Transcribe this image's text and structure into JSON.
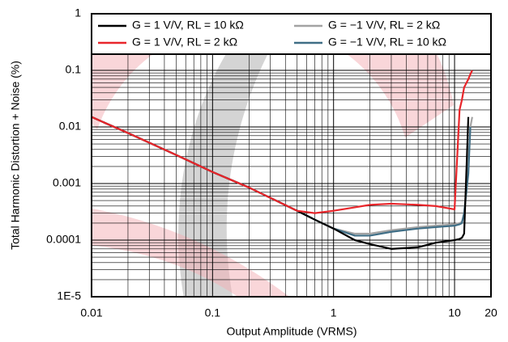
{
  "chart_data": {
    "type": "line",
    "x_label": "Output Amplitude (VRMS)",
    "y_label": "Total Harmonic Distortion  + Noise (%)",
    "x": [
      0.01,
      0.02,
      0.05,
      0.1,
      0.2,
      0.5,
      0.7,
      1,
      1.5,
      2,
      3,
      5,
      7,
      10,
      11,
      11.5,
      12,
      13,
      13.5,
      14
    ],
    "series": [
      {
        "name": "G = −1 V/V, RL = 2 kΩ",
        "color": "#a3a3a3",
        "values": [
          0.015,
          0.0078,
          0.0032,
          0.0016,
          0.00085,
          0.00033,
          0.00023,
          0.00016,
          0.00013,
          0.00013,
          0.00015,
          0.00017,
          0.00018,
          0.00019,
          0.0002,
          0.00021,
          0.0003,
          0.002,
          0.01,
          0.015
        ]
      },
      {
        "name": "G = −1 V/V, RL = 10 kΩ",
        "color": "#3f6e86",
        "values": [
          0.015,
          0.0078,
          0.0032,
          0.0016,
          0.00085,
          0.00033,
          0.00023,
          0.00016,
          0.00012,
          0.00012,
          0.00014,
          0.00016,
          0.00017,
          0.00018,
          0.00019,
          0.0002,
          0.0003,
          0.0015,
          0.01,
          null
        ]
      },
      {
        "name": "G = 1 V/V, RL = 10 kΩ",
        "color": "#000000",
        "values": [
          0.015,
          0.0078,
          0.0032,
          0.0016,
          0.00085,
          0.00033,
          0.00023,
          0.00016,
          0.0001,
          8.5e-05,
          7e-05,
          7.5e-05,
          9e-05,
          0.0001,
          0.000105,
          0.00011,
          0.00013,
          0.015,
          null,
          null
        ]
      },
      {
        "name": "G = 1 V/V, RL = 2 kΩ",
        "color": "#e8262b",
        "values": [
          0.015,
          0.0078,
          0.0032,
          0.0016,
          0.00085,
          0.00033,
          0.0003,
          0.00033,
          0.00038,
          0.00042,
          0.00044,
          0.00042,
          0.0004,
          0.00035,
          0.02,
          0.03,
          0.05,
          0.07,
          0.085,
          0.1
        ]
      }
    ],
    "legend_order": [
      2,
      0,
      3,
      1
    ],
    "xlim": [
      0.01,
      20
    ],
    "ylim": [
      1e-05,
      1
    ],
    "xticks": [
      0.01,
      0.1,
      1,
      10,
      20
    ],
    "yticks": [
      1,
      0.1,
      0.01,
      0.001,
      0.0001,
      {
        "value": 1e-05,
        "label": "1E-5"
      }
    ],
    "log_x": true,
    "log_y": true,
    "grid": true,
    "minor_grid": true,
    "legend": "top"
  }
}
